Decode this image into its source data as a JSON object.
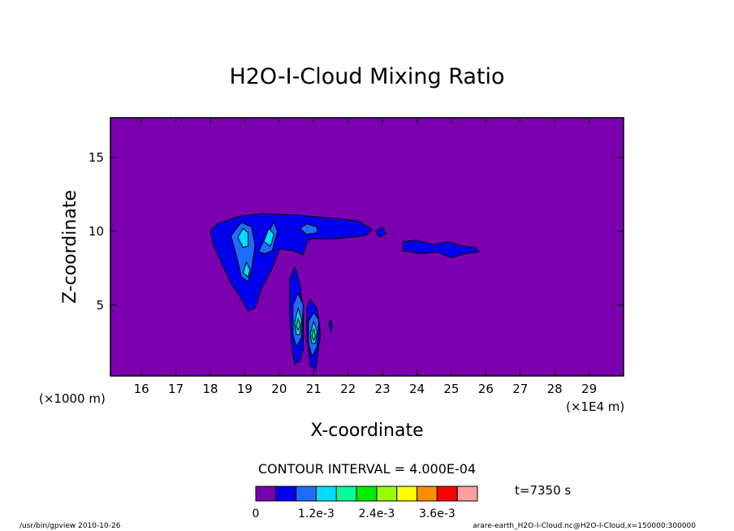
{
  "chart_data": {
    "type": "heatmap",
    "title": "H2O-I-Cloud Mixing Ratio",
    "xlabel": "X-coordinate",
    "ylabel": "Z-coordinate",
    "x_scale_note": "(×1E4 m)",
    "y_scale_note": "(×1000 m)",
    "xlim": [
      15.1,
      30.0
    ],
    "ylim": [
      0.2,
      17.7
    ],
    "x_ticks": [
      16,
      17,
      18,
      19,
      20,
      21,
      22,
      23,
      24,
      25,
      26,
      27,
      28,
      29
    ],
    "y_ticks": [
      5,
      10,
      15
    ],
    "contour_interval_text": "CONTOUR INTERVAL = 4.000E-04",
    "time_text": "t=7350 s",
    "colorbar": {
      "colors": [
        "#7b00b0",
        "#0000ee",
        "#1e6cff",
        "#00ddff",
        "#00ff99",
        "#00ee00",
        "#99ff00",
        "#ffff00",
        "#ff8c00",
        "#ff0000",
        "#ffa0a0"
      ],
      "tick_labels": [
        "0",
        "1.2e-3",
        "2.4e-3",
        "3.6e-3"
      ]
    },
    "background_color": "#7b00b0",
    "regions": [
      {
        "level": 1,
        "name": "upper-anvil",
        "points": [
          [
            18.0,
            10.0
          ],
          [
            18.2,
            10.5
          ],
          [
            18.8,
            11.0
          ],
          [
            19.5,
            11.2
          ],
          [
            20.5,
            11.1
          ],
          [
            21.5,
            10.9
          ],
          [
            22.3,
            10.7
          ],
          [
            22.7,
            10.1
          ],
          [
            22.5,
            9.7
          ],
          [
            21.6,
            9.5
          ],
          [
            20.9,
            9.5
          ],
          [
            20.8,
            9.2
          ],
          [
            20.7,
            8.4
          ],
          [
            20.4,
            8.7
          ],
          [
            20.0,
            8.8
          ],
          [
            19.8,
            7.5
          ],
          [
            19.5,
            6.2
          ],
          [
            19.3,
            4.8
          ],
          [
            19.1,
            4.6
          ],
          [
            18.9,
            5.4
          ],
          [
            18.6,
            6.5
          ],
          [
            18.3,
            8.0
          ],
          [
            18.1,
            9.0
          ]
        ]
      },
      {
        "level": 1,
        "name": "anvil-blob-right",
        "points": [
          [
            22.8,
            10.0
          ],
          [
            23.0,
            10.3
          ],
          [
            23.1,
            9.8
          ],
          [
            22.9,
            9.6
          ]
        ]
      },
      {
        "level": 1,
        "name": "anvil-tail",
        "points": [
          [
            23.6,
            9.3
          ],
          [
            24.0,
            9.4
          ],
          [
            24.5,
            9.1
          ],
          [
            24.9,
            9.3
          ],
          [
            25.3,
            9.0
          ],
          [
            25.7,
            8.9
          ],
          [
            25.8,
            8.6
          ],
          [
            25.4,
            8.5
          ],
          [
            25.0,
            8.2
          ],
          [
            24.6,
            8.6
          ],
          [
            24.1,
            8.5
          ],
          [
            23.6,
            8.7
          ]
        ]
      },
      {
        "level": 1,
        "name": "lower-column-left",
        "points": [
          [
            20.3,
            6.7
          ],
          [
            20.45,
            7.6
          ],
          [
            20.6,
            6.5
          ],
          [
            20.7,
            4.5
          ],
          [
            20.7,
            2.0
          ],
          [
            20.6,
            1.2
          ],
          [
            20.45,
            1.0
          ],
          [
            20.35,
            2.5
          ],
          [
            20.3,
            4.5
          ]
        ]
      },
      {
        "level": 1,
        "name": "lower-column-right",
        "points": [
          [
            20.8,
            4.8
          ],
          [
            20.9,
            5.4
          ],
          [
            21.1,
            4.8
          ],
          [
            21.2,
            3.0
          ],
          [
            21.05,
            0.6
          ],
          [
            20.9,
            0.9
          ],
          [
            20.8,
            3.0
          ]
        ]
      },
      {
        "level": 1,
        "name": "small-streak",
        "points": [
          [
            21.45,
            3.7
          ],
          [
            21.5,
            4.0
          ],
          [
            21.55,
            3.5
          ],
          [
            21.5,
            3.2
          ]
        ]
      },
      {
        "level": 2,
        "name": "core-upper-left",
        "points": [
          [
            18.6,
            9.7
          ],
          [
            18.9,
            10.6
          ],
          [
            19.2,
            10.3
          ],
          [
            19.3,
            9.0
          ],
          [
            19.2,
            7.5
          ],
          [
            19.1,
            6.6
          ],
          [
            18.9,
            6.9
          ],
          [
            18.8,
            8.0
          ]
        ]
      },
      {
        "level": 2,
        "name": "core-upper-mid",
        "points": [
          [
            19.4,
            8.6
          ],
          [
            19.6,
            9.6
          ],
          [
            19.85,
            10.6
          ],
          [
            19.95,
            10.0
          ],
          [
            19.8,
            8.7
          ],
          [
            19.6,
            8.5
          ]
        ]
      },
      {
        "level": 2,
        "name": "core-upper-small",
        "points": [
          [
            20.6,
            10.2
          ],
          [
            20.8,
            10.5
          ],
          [
            21.1,
            10.3
          ],
          [
            21.1,
            9.9
          ],
          [
            20.8,
            9.8
          ]
        ]
      },
      {
        "level": 2,
        "name": "core-lower-left",
        "points": [
          [
            20.4,
            5.0
          ],
          [
            20.55,
            5.8
          ],
          [
            20.7,
            5.0
          ],
          [
            20.65,
            2.8
          ],
          [
            20.5,
            2.2
          ],
          [
            20.4,
            3.0
          ]
        ]
      },
      {
        "level": 2,
        "name": "core-lower-right",
        "points": [
          [
            20.85,
            3.9
          ],
          [
            21.0,
            4.5
          ],
          [
            21.15,
            4.0
          ],
          [
            21.1,
            2.2
          ],
          [
            20.95,
            1.5
          ],
          [
            20.85,
            2.5
          ]
        ]
      },
      {
        "level": 3,
        "name": "peak-upper-left",
        "points": [
          [
            18.8,
            9.6
          ],
          [
            18.95,
            10.2
          ],
          [
            19.1,
            9.9
          ],
          [
            19.1,
            9.0
          ],
          [
            18.95,
            8.9
          ]
        ]
      },
      {
        "level": 3,
        "name": "peak-upper-lower",
        "points": [
          [
            18.95,
            7.2
          ],
          [
            19.05,
            7.9
          ],
          [
            19.15,
            7.4
          ],
          [
            19.1,
            6.9
          ]
        ]
      },
      {
        "level": 3,
        "name": "peak-upper-mid",
        "points": [
          [
            19.55,
            9.3
          ],
          [
            19.7,
            10.2
          ],
          [
            19.85,
            9.8
          ],
          [
            19.75,
            9.0
          ]
        ]
      },
      {
        "level": 3,
        "name": "peak-lower-left",
        "points": [
          [
            20.45,
            3.8
          ],
          [
            20.55,
            4.8
          ],
          [
            20.65,
            4.0
          ],
          [
            20.6,
            3.0
          ],
          [
            20.5,
            3.0
          ]
        ]
      },
      {
        "level": 3,
        "name": "peak-lower-right",
        "points": [
          [
            20.9,
            3.0
          ],
          [
            21.0,
            3.9
          ],
          [
            21.1,
            3.2
          ],
          [
            21.05,
            2.4
          ],
          [
            20.95,
            2.4
          ]
        ]
      },
      {
        "level": 4,
        "name": "max-lower-left",
        "points": [
          [
            20.5,
            3.6
          ],
          [
            20.55,
            4.1
          ],
          [
            20.6,
            3.6
          ],
          [
            20.55,
            3.3
          ]
        ]
      },
      {
        "level": 4,
        "name": "max-lower-right",
        "points": [
          [
            20.95,
            2.9
          ],
          [
            21.0,
            3.4
          ],
          [
            21.05,
            2.9
          ],
          [
            21.0,
            2.6
          ]
        ]
      }
    ]
  },
  "footer": {
    "left": "/usr/bin/gpview 2010-10-26",
    "right": "arare-earth_H2O-I-Cloud.nc@H2O-I-Cloud,x=150000:300000"
  }
}
